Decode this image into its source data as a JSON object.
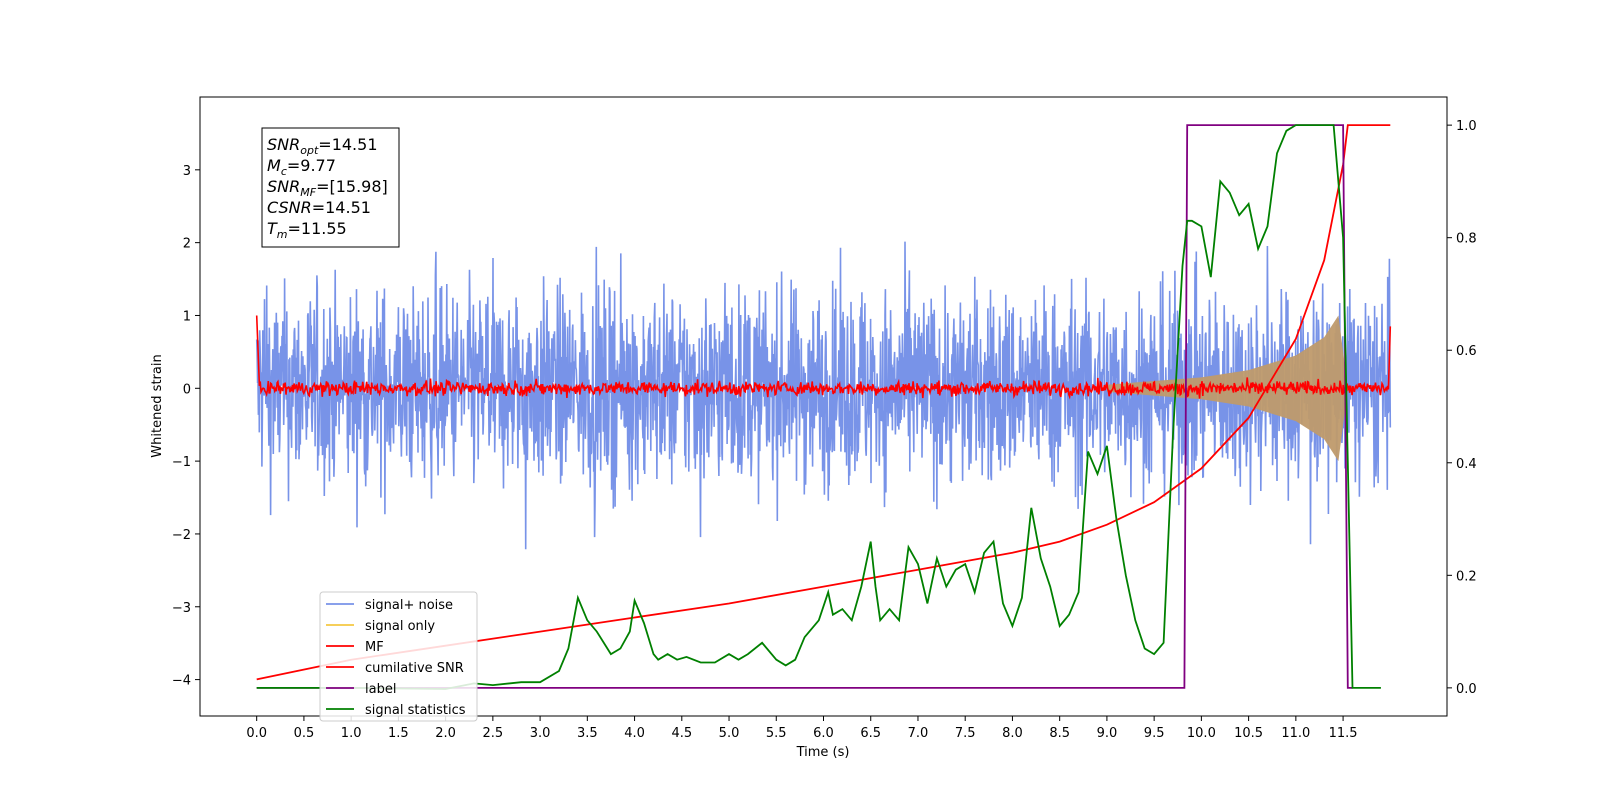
{
  "chart_data": {
    "type": "line",
    "title": "",
    "xlabel": "Time (s)",
    "ylabel": "Whitened strain",
    "xlim": [
      -0.6,
      12.6
    ],
    "ylim": [
      -4.5,
      4.0
    ],
    "y2lim": [
      -0.05,
      1.05
    ],
    "xticks": [
      "0.0",
      "0.5",
      "1.0",
      "1.5",
      "2.0",
      "2.5",
      "3.0",
      "3.5",
      "4.0",
      "4.5",
      "5.0",
      "5.5",
      "6.0",
      "6.5",
      "7.0",
      "7.5",
      "8.0",
      "8.5",
      "9.0",
      "9.5",
      "10.0",
      "10.5",
      "11.0",
      "11.5"
    ],
    "yticks": [
      "3",
      "2",
      "1",
      "0",
      "−1",
      "−2",
      "−3",
      "−4"
    ],
    "y2ticks": [
      "1.0",
      "0.8",
      "0.6",
      "0.4",
      "0.2",
      "0.0"
    ],
    "grid": false,
    "legend_position": "lower-left",
    "annotation": {
      "lines": [
        {
          "base": "SNR",
          "sub": "opt",
          "rest": "=14.51"
        },
        {
          "base": "M",
          "sub": "c",
          "rest": "=9.77"
        },
        {
          "base": "SNR",
          "sub": "MF",
          "rest": "=[15.98]"
        },
        {
          "base": "CSNR",
          "sub": "",
          "rest": "=14.51"
        },
        {
          "base": "T",
          "sub": "m",
          "rest": "=11.55"
        }
      ]
    },
    "series": [
      {
        "name": "signal+ noise",
        "color": "#7893e8",
        "axis": "left",
        "kind": "noise",
        "amplitude": 2.2,
        "range": [
          0.0,
          12.0
        ]
      },
      {
        "name": "signal only",
        "color": "#f5c842",
        "axis": "left",
        "kind": "chirp-envelope",
        "x": [
          9.0,
          9.5,
          10.0,
          10.5,
          11.0,
          11.3,
          11.45,
          11.55
        ],
        "y": [
          0.05,
          0.1,
          0.15,
          0.25,
          0.45,
          0.7,
          1.0,
          0.0
        ]
      },
      {
        "name": "MF",
        "color": "#ff0000",
        "axis": "left",
        "kind": "noise",
        "amplitude": 0.07,
        "range": [
          0.0,
          12.0
        ],
        "edges": [
          1.0,
          0.85
        ]
      },
      {
        "name": "cumilative SNR",
        "color": "#ff0000",
        "axis": "right",
        "x": [
          0.0,
          1.0,
          2.0,
          3.0,
          4.0,
          5.0,
          6.0,
          7.0,
          8.0,
          8.5,
          9.0,
          9.5,
          10.0,
          10.5,
          11.0,
          11.3,
          11.5,
          11.55,
          12.0
        ],
        "y": [
          0.015,
          0.05,
          0.075,
          0.1,
          0.125,
          0.15,
          0.18,
          0.21,
          0.24,
          0.26,
          0.29,
          0.33,
          0.39,
          0.48,
          0.62,
          0.76,
          0.93,
          1.0,
          1.0
        ]
      },
      {
        "name": "label",
        "color": "#800080",
        "axis": "right",
        "x": [
          0.0,
          9.82,
          9.85,
          11.5,
          11.55,
          11.6
        ],
        "y": [
          0.0,
          0.0,
          1.0,
          1.0,
          0.0,
          0.0
        ]
      },
      {
        "name": "signal statistics",
        "color": "#008000",
        "axis": "right",
        "x": [
          0.0,
          1.0,
          2.0,
          2.3,
          2.5,
          2.8,
          3.0,
          3.2,
          3.3,
          3.4,
          3.5,
          3.6,
          3.75,
          3.85,
          3.95,
          4.0,
          4.1,
          4.2,
          4.25,
          4.35,
          4.45,
          4.55,
          4.7,
          4.85,
          5.0,
          5.1,
          5.2,
          5.35,
          5.5,
          5.6,
          5.7,
          5.8,
          5.95,
          6.05,
          6.1,
          6.2,
          6.3,
          6.4,
          6.5,
          6.55,
          6.6,
          6.7,
          6.8,
          6.9,
          7.0,
          7.1,
          7.2,
          7.3,
          7.4,
          7.5,
          7.6,
          7.7,
          7.8,
          7.9,
          8.0,
          8.1,
          8.2,
          8.3,
          8.4,
          8.5,
          8.6,
          8.7,
          8.8,
          8.9,
          9.0,
          9.1,
          9.2,
          9.3,
          9.4,
          9.5,
          9.6,
          9.7,
          9.8,
          9.85,
          9.9,
          10.0,
          10.1,
          10.2,
          10.3,
          10.4,
          10.5,
          10.6,
          10.7,
          10.8,
          10.9,
          11.0,
          11.2,
          11.4,
          11.5,
          11.55,
          11.6,
          11.9
        ],
        "y": [
          0.0,
          0.0,
          -0.002,
          0.008,
          0.005,
          0.01,
          0.01,
          0.03,
          0.07,
          0.16,
          0.12,
          0.1,
          0.06,
          0.07,
          0.1,
          0.155,
          0.115,
          0.06,
          0.05,
          0.06,
          0.05,
          0.055,
          0.045,
          0.045,
          0.06,
          0.05,
          0.06,
          0.08,
          0.05,
          0.04,
          0.05,
          0.09,
          0.12,
          0.17,
          0.13,
          0.14,
          0.12,
          0.18,
          0.26,
          0.18,
          0.12,
          0.14,
          0.12,
          0.25,
          0.22,
          0.15,
          0.23,
          0.18,
          0.21,
          0.22,
          0.17,
          0.24,
          0.26,
          0.15,
          0.11,
          0.16,
          0.32,
          0.23,
          0.18,
          0.11,
          0.13,
          0.17,
          0.42,
          0.38,
          0.43,
          0.3,
          0.2,
          0.12,
          0.07,
          0.06,
          0.08,
          0.45,
          0.75,
          0.83,
          0.83,
          0.82,
          0.73,
          0.9,
          0.88,
          0.84,
          0.86,
          0.78,
          0.82,
          0.95,
          0.99,
          1.0,
          1.0,
          1.0,
          0.8,
          0.4,
          0.0,
          0.0
        ]
      }
    ]
  }
}
